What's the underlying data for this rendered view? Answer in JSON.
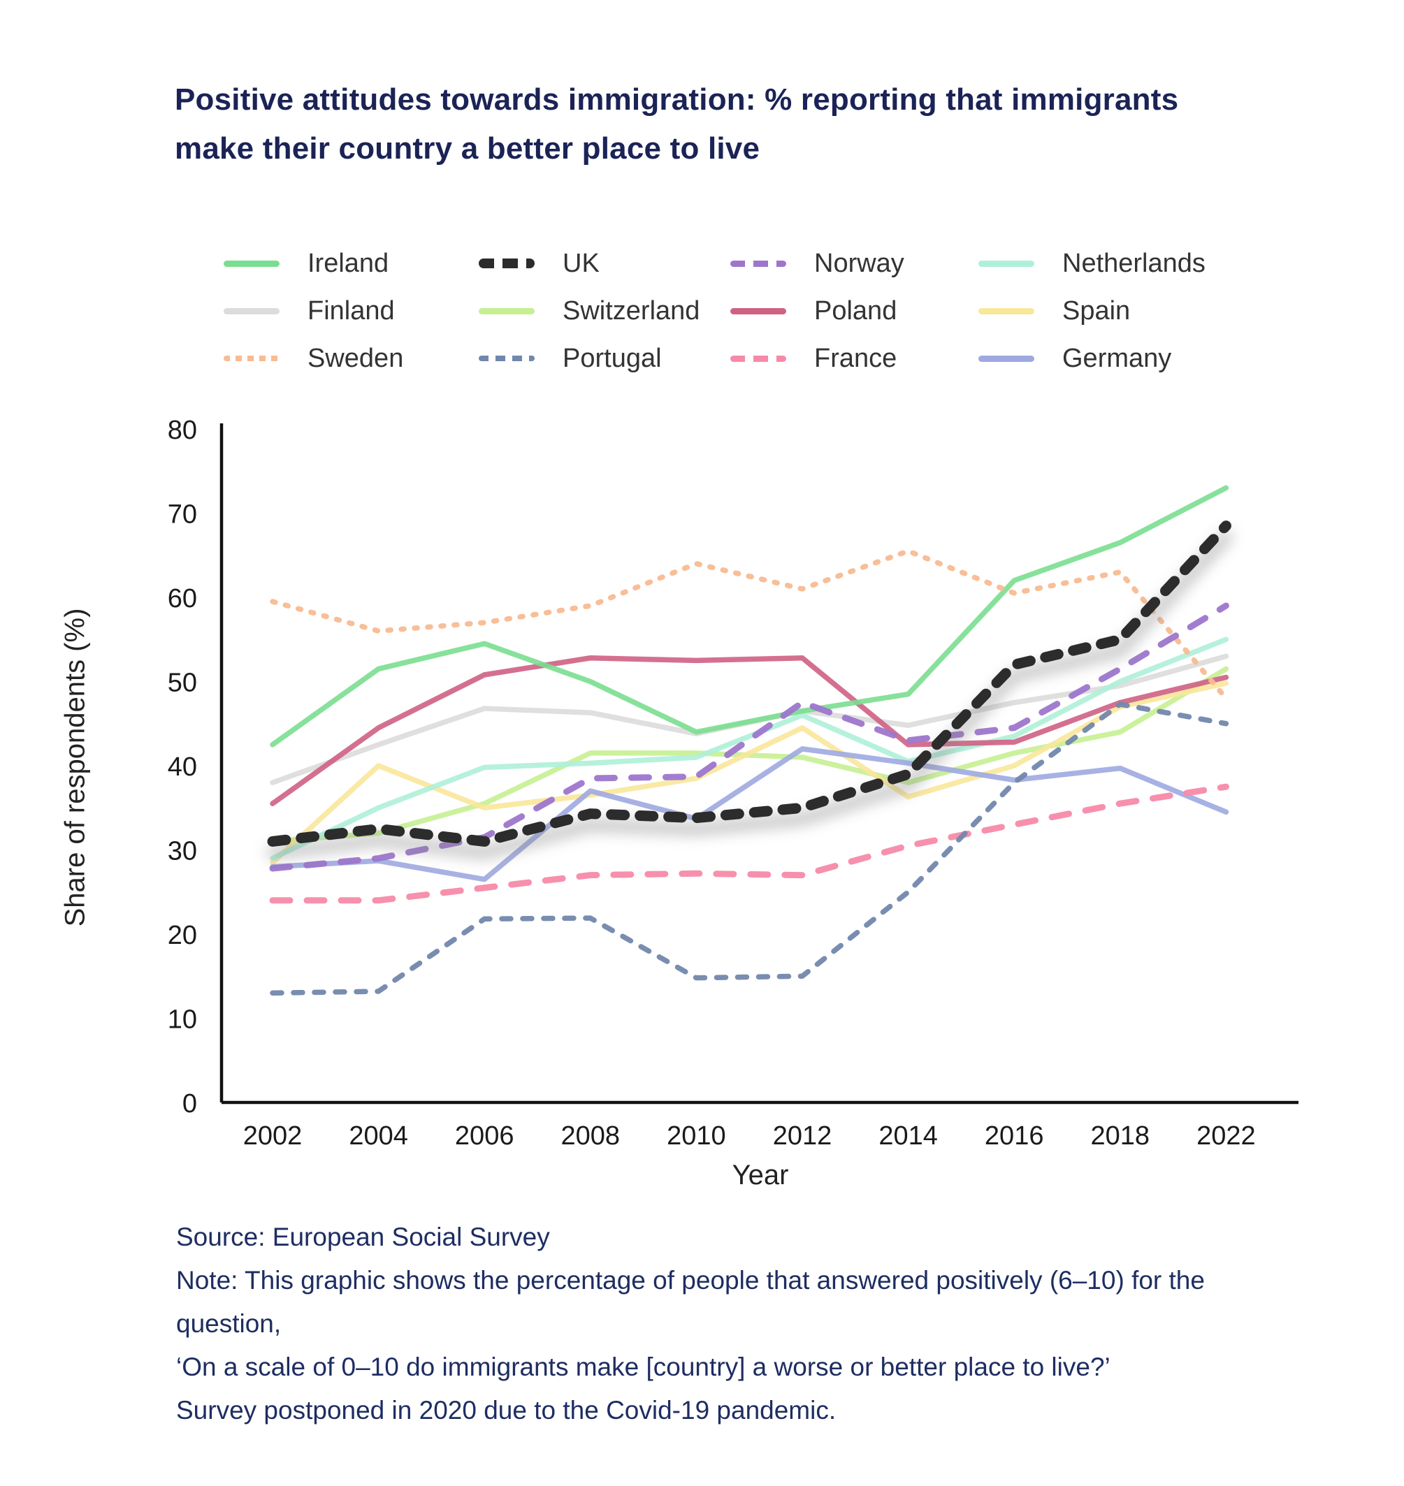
{
  "title": {
    "line1": "Positive attitudes towards immigration: % reporting that immigrants",
    "line2": "make their country a better place to live",
    "color": "#1b2356"
  },
  "axis": {
    "xlabel": "Year",
    "ylabel": "Share of respondents (%)",
    "tick_color": "#1a1a1a",
    "axis_color": "#111111"
  },
  "notes": {
    "color": "#1e2d62",
    "source": "Source: European Social Survey",
    "note1": "Note: This graphic shows the percentage of people that answered positively (6–10) for the question,",
    "note2": "‘On a scale of 0–10 do immigrants make [country] a worse or better place to live?’",
    "note3": "Survey postponed in 2020 due to the Covid-19 pandemic."
  },
  "chart_data": {
    "type": "line",
    "title": "Positive attitudes towards immigration: % reporting that immigrants make their country a better place to live",
    "xlabel": "Year",
    "ylabel": "Share of respondents (%)",
    "x": [
      2002,
      2004,
      2006,
      2008,
      2010,
      2012,
      2014,
      2016,
      2018,
      2022
    ],
    "x_tick_labels": [
      "2002",
      "2004",
      "2006",
      "2008",
      "2010",
      "2012",
      "2014",
      "2016",
      "2018",
      "2022"
    ],
    "yticks": [
      0,
      10,
      20,
      30,
      40,
      50,
      60,
      70,
      80
    ],
    "ylim": [
      0,
      80
    ],
    "grid": false,
    "legend_position": "top",
    "x_note": "2020 survey skipped (Covid-19); x axis jumps from 2018 to 2022",
    "series": [
      {
        "name": "Ireland",
        "color": "#7ade90",
        "style": "solid",
        "values": [
          42.5,
          51.5,
          54.5,
          50.0,
          44.0,
          46.5,
          48.5,
          62.0,
          66.5,
          73.0
        ]
      },
      {
        "name": "UK",
        "color": "#2c2c2c",
        "style": "uk-dashed",
        "values": [
          31.0,
          32.5,
          31.0,
          34.3,
          33.8,
          35.0,
          39.0,
          52.0,
          55.0,
          68.5
        ]
      },
      {
        "name": "Norway",
        "color": "#9d76cc",
        "style": "dashed",
        "values": [
          27.8,
          29.0,
          31.5,
          38.5,
          38.7,
          47.5,
          43.0,
          44.5,
          51.5,
          59.0
        ]
      },
      {
        "name": "Netherlands",
        "color": "#aef0d8",
        "style": "solid",
        "values": [
          29.0,
          35.0,
          39.8,
          40.3,
          41.0,
          46.0,
          40.5,
          43.5,
          50.0,
          55.0
        ]
      },
      {
        "name": "Finland",
        "color": "#dcdcdc",
        "style": "solid",
        "values": [
          38.0,
          42.5,
          46.8,
          46.3,
          43.8,
          46.5,
          44.8,
          47.5,
          49.5,
          53.0
        ]
      },
      {
        "name": "Switzerland",
        "color": "#c6ef92",
        "style": "solid",
        "values": [
          31.0,
          32.0,
          35.5,
          41.5,
          41.5,
          41.0,
          38.0,
          41.5,
          44.0,
          51.5
        ]
      },
      {
        "name": "Poland",
        "color": "#cf6183",
        "style": "solid",
        "values": [
          35.5,
          44.5,
          50.8,
          52.8,
          52.5,
          52.8,
          42.5,
          42.8,
          47.5,
          50.5
        ]
      },
      {
        "name": "Spain",
        "color": "#f9e79a",
        "style": "solid",
        "values": [
          28.5,
          40.0,
          35.0,
          36.5,
          38.5,
          44.5,
          36.3,
          40.0,
          47.0,
          49.8
        ]
      },
      {
        "name": "Sweden",
        "color": "#f8bb92",
        "style": "dotted",
        "values": [
          59.5,
          56.0,
          57.0,
          59.0,
          64.0,
          61.0,
          65.5,
          60.5,
          63.0,
          48.0
        ]
      },
      {
        "name": "Portugal",
        "color": "#7287ac",
        "style": "dashed-short",
        "values": [
          13.0,
          13.2,
          21.8,
          21.9,
          14.8,
          15.0,
          25.0,
          38.0,
          47.3,
          45.0
        ]
      },
      {
        "name": "France",
        "color": "#f78aa8",
        "style": "dashed",
        "values": [
          24.0,
          24.0,
          25.5,
          27.0,
          27.2,
          27.0,
          30.5,
          33.0,
          35.5,
          37.5
        ]
      },
      {
        "name": "Germany",
        "color": "#9fa8e0",
        "style": "solid",
        "values": [
          28.0,
          28.7,
          26.5,
          37.0,
          33.7,
          42.0,
          40.3,
          38.3,
          39.7,
          34.5
        ]
      }
    ],
    "legend_order": [
      "Ireland",
      "UK",
      "Norway",
      "Netherlands",
      "Finland",
      "Switzerland",
      "Poland",
      "Spain",
      "Sweden",
      "Portugal",
      "France",
      "Germany"
    ],
    "draw_order": [
      "Finland",
      "Switzerland",
      "Spain",
      "Netherlands",
      "Germany",
      "Poland",
      "Ireland",
      "Sweden",
      "France",
      "Portugal",
      "Norway",
      "UK"
    ]
  }
}
